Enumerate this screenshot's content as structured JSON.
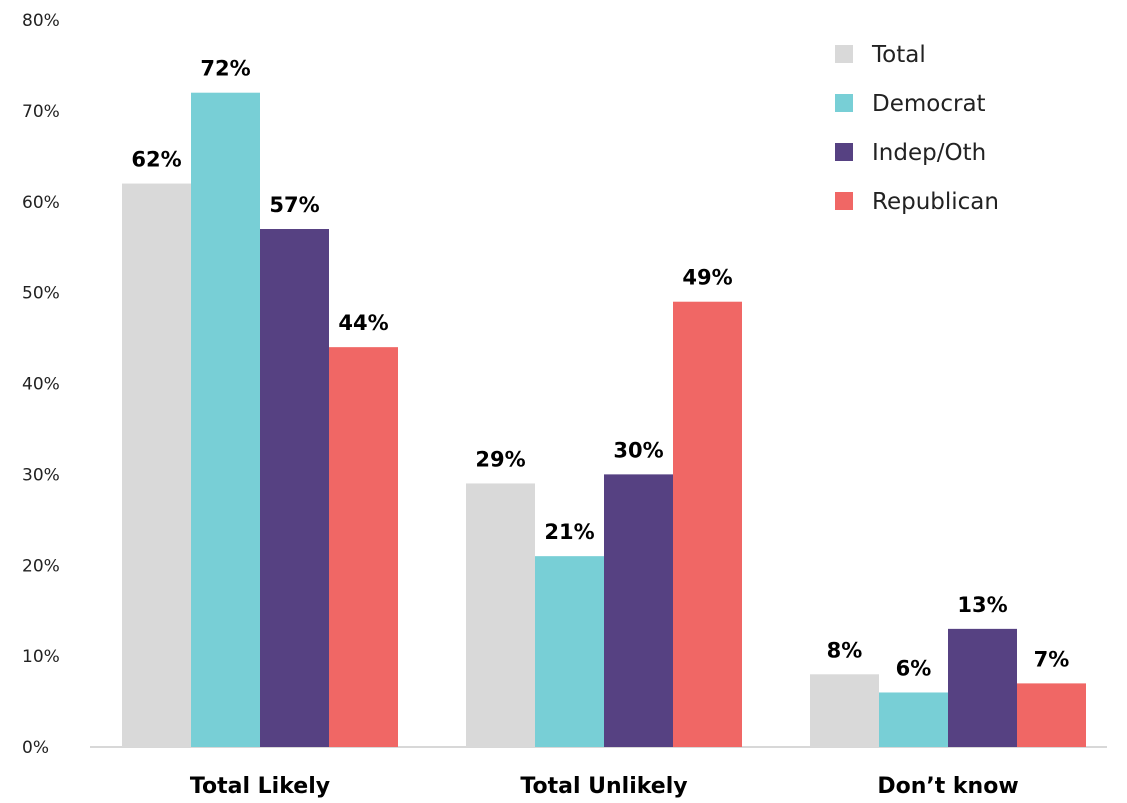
{
  "chart_data": {
    "type": "bar",
    "categories": [
      "Total Likely",
      "Total Unlikely",
      "Don’t know"
    ],
    "series": [
      {
        "name": "Total",
        "color": "#d9d9d9",
        "values": [
          62,
          29,
          8
        ],
        "labels": [
          "62%",
          "29%",
          "8%"
        ]
      },
      {
        "name": "Democrat",
        "color": "#78cfd6",
        "values": [
          72,
          21,
          6
        ],
        "labels": [
          "72%",
          "21%",
          "6%"
        ]
      },
      {
        "name": "Indep/Oth",
        "color": "#564182",
        "values": [
          57,
          30,
          13
        ],
        "labels": [
          "57%",
          "30%",
          "13%"
        ]
      },
      {
        "name": "Republican",
        "color": "#f06765",
        "values": [
          44,
          49,
          7
        ],
        "labels": [
          "44%",
          "49%",
          "7%"
        ]
      }
    ],
    "ylim": [
      0,
      80
    ],
    "yticks": [
      "0%",
      "10%",
      "20%",
      "30%",
      "40%",
      "50%",
      "60%",
      "70%",
      "80%"
    ],
    "grid": false,
    "legend": "top-right"
  }
}
